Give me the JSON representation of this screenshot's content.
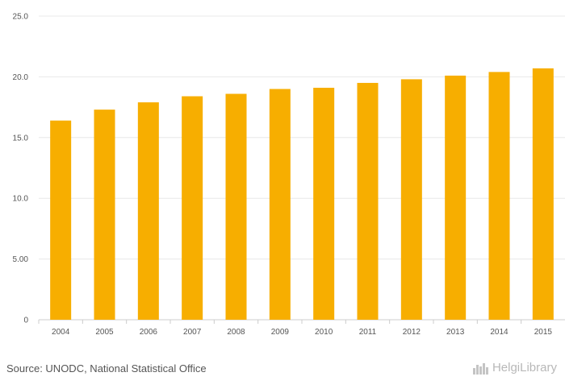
{
  "chart_data": {
    "type": "bar",
    "categories": [
      "2004",
      "2005",
      "2006",
      "2007",
      "2008",
      "2009",
      "2010",
      "2011",
      "2012",
      "2013",
      "2014",
      "2015"
    ],
    "values": [
      16.4,
      17.3,
      17.9,
      18.4,
      18.6,
      19.0,
      19.1,
      19.5,
      19.8,
      20.1,
      20.4,
      20.7
    ],
    "ylim": [
      0,
      25
    ],
    "yticks": [
      0,
      5,
      10,
      15,
      20,
      25
    ],
    "ytick_labels": [
      "0",
      "5.00",
      "10.0",
      "15.0",
      "20.0",
      "25.0"
    ],
    "grid": true,
    "bar_color": "#F7AE00",
    "title": "",
    "xlabel": "",
    "ylabel": ""
  },
  "footer": {
    "source": "Source: UNODC, National Statistical Office",
    "brand": "HelgiLibrary",
    "brand_icon": "library-buildings-icon"
  }
}
